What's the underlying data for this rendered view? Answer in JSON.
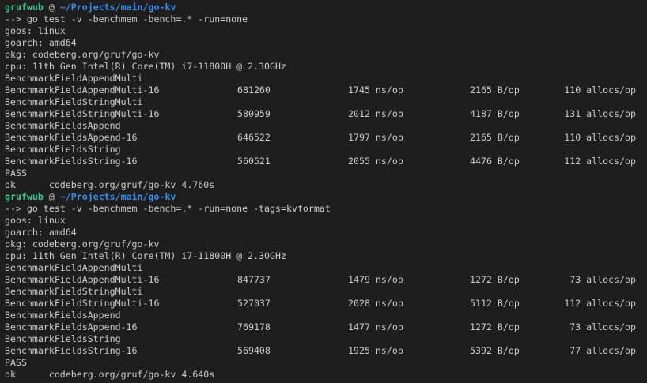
{
  "colors": {
    "background": "#1e1e1e",
    "text": "#cccccc",
    "user": "#3fc58c",
    "path": "#3b8eea"
  },
  "runs": [
    {
      "prompt": {
        "user": "grufwub",
        "at": " @ ",
        "path": "~/Projects/main/go-kv"
      },
      "command": "--> go test -v -benchmem -bench=.* -run=none",
      "header": [
        "goos: linux",
        "goarch: amd64",
        "pkg: codeberg.org/gruf/go-kv",
        "cpu: 11th Gen Intel(R) Core(TM) i7-11800H @ 2.30GHz"
      ],
      "benchmarks": [
        {
          "title": "BenchmarkFieldAppendMulti",
          "name": "BenchmarkFieldAppendMulti-16",
          "iterations": "681260",
          "ns_op": "1745 ns/op",
          "b_op": "2165 B/op",
          "allocs": "110 allocs/op"
        },
        {
          "title": "BenchmarkFieldStringMulti",
          "name": "BenchmarkFieldStringMulti-16",
          "iterations": "580959",
          "ns_op": "2012 ns/op",
          "b_op": "4187 B/op",
          "allocs": "131 allocs/op"
        },
        {
          "title": "BenchmarkFieldsAppend",
          "name": "BenchmarkFieldsAppend-16",
          "iterations": "646522",
          "ns_op": "1797 ns/op",
          "b_op": "2165 B/op",
          "allocs": "110 allocs/op"
        },
        {
          "title": "BenchmarkFieldsString",
          "name": "BenchmarkFieldsString-16",
          "iterations": "560521",
          "ns_op": "2055 ns/op",
          "b_op": "4476 B/op",
          "allocs": "112 allocs/op"
        }
      ],
      "status": "PASS",
      "result": "ok      codeberg.org/gruf/go-kv 4.760s"
    },
    {
      "prompt": {
        "user": "grufwub",
        "at": " @ ",
        "path": "~/Projects/main/go-kv"
      },
      "command": "--> go test -v -benchmem -bench=.* -run=none -tags=kvformat",
      "header": [
        "goos: linux",
        "goarch: amd64",
        "pkg: codeberg.org/gruf/go-kv",
        "cpu: 11th Gen Intel(R) Core(TM) i7-11800H @ 2.30GHz"
      ],
      "benchmarks": [
        {
          "title": "BenchmarkFieldAppendMulti",
          "name": "BenchmarkFieldAppendMulti-16",
          "iterations": "847737",
          "ns_op": "1479 ns/op",
          "b_op": "1272 B/op",
          "allocs": "73 allocs/op"
        },
        {
          "title": "BenchmarkFieldStringMulti",
          "name": "BenchmarkFieldStringMulti-16",
          "iterations": "527037",
          "ns_op": "2028 ns/op",
          "b_op": "5112 B/op",
          "allocs": "112 allocs/op"
        },
        {
          "title": "BenchmarkFieldsAppend",
          "name": "BenchmarkFieldsAppend-16",
          "iterations": "769178",
          "ns_op": "1477 ns/op",
          "b_op": "1272 B/op",
          "allocs": "73 allocs/op"
        },
        {
          "title": "BenchmarkFieldsString",
          "name": "BenchmarkFieldsString-16",
          "iterations": "569408",
          "ns_op": "1925 ns/op",
          "b_op": "5392 B/op",
          "allocs": "77 allocs/op"
        }
      ],
      "status": "PASS",
      "result": "ok      codeberg.org/gruf/go-kv 4.640s"
    }
  ]
}
